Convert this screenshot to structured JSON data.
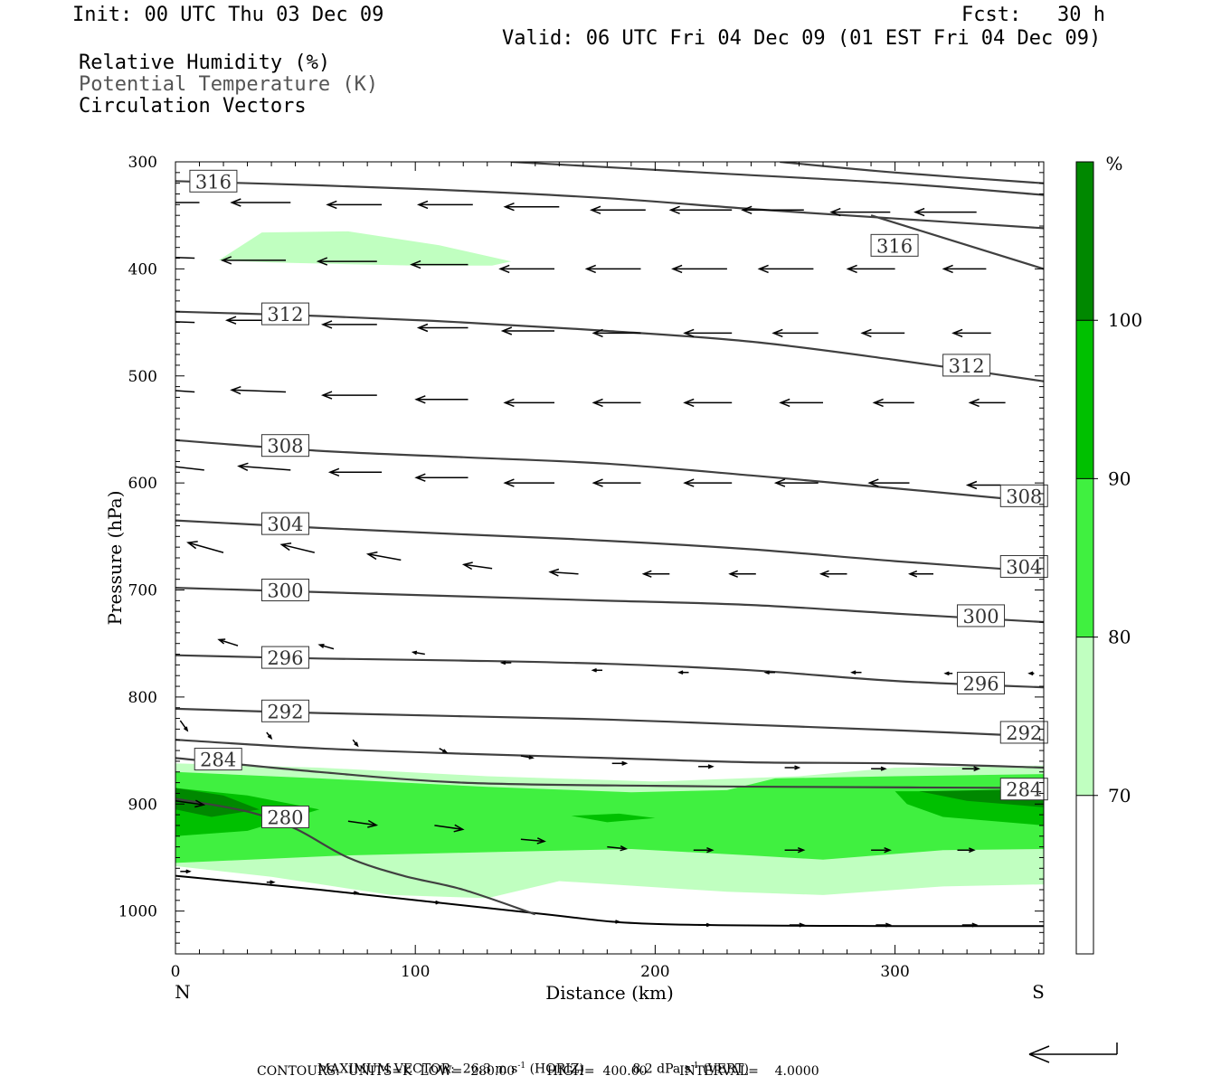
{
  "header": {
    "init": "Init: 00 UTC Thu 03 Dec 09",
    "fcst": "Fcst:   30 h",
    "valid": "Valid: 06 UTC Fri 04 Dec 09 (01 EST Fri 04 Dec 09)",
    "legend_rh": "Relative Humidity (%)",
    "legend_theta": "Potential Temperature (K)",
    "legend_vec": "Circulation Vectors"
  },
  "footer": {
    "max_vector_label": "MAXIMUM VECTOR:",
    "max_horiz_value": "26.3 m s",
    "max_vert_value": "8.2 dPa s",
    "exponent": "-1",
    "horiz_tag": "(HORIZ)",
    "vert_tag": "(VERT)",
    "contours_line": "CONTOURS:  UNITS=K  LOW=  280.00        HIGH=  400.00        INTERVAL=    4.0000"
  },
  "colors": {
    "rh70": "#c0ffc0",
    "rh80": "#40f040",
    "rh90": "#00c000",
    "rh100": "#008800",
    "theta_line": "#404040",
    "vector": "#000000"
  },
  "chart_data": {
    "type": "cross-section",
    "xlabel": "Distance (km)",
    "ylabel": "Pressure (hPa)",
    "xlim": [
      0,
      362
    ],
    "ylim": [
      1040,
      300
    ],
    "x_ticks": [
      0,
      100,
      200,
      300
    ],
    "y_ticks": [
      300,
      400,
      500,
      600,
      700,
      800,
      900,
      1000
    ],
    "left_end_label": "N",
    "right_end_label": "S",
    "colorbar": {
      "unit": "%",
      "levels": [
        70,
        80,
        90,
        100
      ],
      "colors": [
        "#c0ffc0",
        "#40f040",
        "#00c000",
        "#008800"
      ]
    },
    "theta_contours": [
      {
        "value": 316,
        "label": "316",
        "points": [
          [
            0,
            318
          ],
          [
            60,
            322
          ],
          [
            120,
            327
          ],
          [
            180,
            334
          ],
          [
            240,
            344
          ],
          [
            300,
            353
          ],
          [
            362,
            362
          ]
        ]
      },
      {
        "value": 316,
        "label": "316",
        "points": [
          [
            140,
            300
          ],
          [
            220,
            310
          ],
          [
            300,
            320
          ],
          [
            362,
            331
          ]
        ]
      },
      {
        "value": 316,
        "label": "",
        "points": [
          [
            252,
            300
          ],
          [
            300,
            310
          ],
          [
            362,
            320
          ]
        ]
      },
      {
        "value": 316,
        "label": "",
        "points": [
          [
            290,
            350
          ],
          [
            362,
            400
          ]
        ]
      },
      {
        "value": 312,
        "label": "312",
        "points": [
          [
            0,
            440
          ],
          [
            60,
            444
          ],
          [
            120,
            450
          ],
          [
            180,
            458
          ],
          [
            240,
            468
          ],
          [
            300,
            485
          ],
          [
            362,
            505
          ]
        ]
      },
      {
        "value": 308,
        "label": "308",
        "points": [
          [
            0,
            560
          ],
          [
            60,
            570
          ],
          [
            120,
            576
          ],
          [
            180,
            582
          ],
          [
            240,
            593
          ],
          [
            300,
            605
          ],
          [
            362,
            618
          ]
        ]
      },
      {
        "value": 304,
        "label": "304",
        "points": [
          [
            0,
            635
          ],
          [
            60,
            642
          ],
          [
            120,
            648
          ],
          [
            180,
            654
          ],
          [
            240,
            662
          ],
          [
            300,
            673
          ],
          [
            362,
            683
          ]
        ]
      },
      {
        "value": 300,
        "label": "300",
        "points": [
          [
            0,
            698
          ],
          [
            60,
            702
          ],
          [
            120,
            706
          ],
          [
            180,
            710
          ],
          [
            240,
            714
          ],
          [
            300,
            722
          ],
          [
            362,
            730
          ]
        ]
      },
      {
        "value": 296,
        "label": "296",
        "points": [
          [
            0,
            761
          ],
          [
            60,
            764
          ],
          [
            120,
            766
          ],
          [
            180,
            769
          ],
          [
            240,
            775
          ],
          [
            300,
            785
          ],
          [
            362,
            791
          ]
        ]
      },
      {
        "value": 292,
        "label": "292",
        "points": [
          [
            0,
            811
          ],
          [
            60,
            815
          ],
          [
            120,
            818
          ],
          [
            180,
            821
          ],
          [
            240,
            826
          ],
          [
            300,
            831
          ],
          [
            362,
            837
          ]
        ]
      },
      {
        "value": 288,
        "label": "",
        "points": [
          [
            0,
            840
          ],
          [
            60,
            848
          ],
          [
            120,
            853
          ],
          [
            180,
            857
          ],
          [
            240,
            861
          ],
          [
            300,
            862
          ],
          [
            362,
            866
          ]
        ]
      },
      {
        "value": 284,
        "label": "284",
        "points": [
          [
            0,
            857
          ],
          [
            60,
            870
          ],
          [
            120,
            880
          ],
          [
            200,
            883
          ],
          [
            260,
            884
          ],
          [
            362,
            885
          ]
        ]
      },
      {
        "value": 280,
        "label": "280",
        "points": [
          [
            0,
            895
          ],
          [
            30,
            907
          ],
          [
            50,
            923
          ],
          [
            72,
            950
          ],
          [
            95,
            967
          ],
          [
            120,
            980
          ],
          [
            150,
            1003
          ]
        ]
      }
    ],
    "terrain": [
      [
        0,
        967
      ],
      [
        60,
        980
      ],
      [
        150,
        1002
      ],
      [
        200,
        1012
      ],
      [
        300,
        1014
      ],
      [
        362,
        1014
      ]
    ],
    "vectors": [
      {
        "x": 10,
        "p": 338,
        "u": -25,
        "w": 0
      },
      {
        "x": 48,
        "p": 338,
        "u": -25,
        "w": 0
      },
      {
        "x": 86,
        "p": 340,
        "u": -23,
        "w": 0
      },
      {
        "x": 124,
        "p": 340,
        "u": -23,
        "w": 0
      },
      {
        "x": 160,
        "p": 342,
        "u": -23,
        "w": 0
      },
      {
        "x": 196,
        "p": 345,
        "u": -23,
        "w": 0
      },
      {
        "x": 232,
        "p": 345,
        "u": -26,
        "w": 0
      },
      {
        "x": 262,
        "p": 345,
        "u": -26,
        "w": 0
      },
      {
        "x": 298,
        "p": 347,
        "u": -25,
        "w": 0
      },
      {
        "x": 334,
        "p": 347,
        "u": -26,
        "w": 0
      },
      {
        "x": 8,
        "p": 390,
        "u": -25,
        "w": 1
      },
      {
        "x": 46,
        "p": 392,
        "u": -27,
        "w": 0
      },
      {
        "x": 84,
        "p": 393,
        "u": -25,
        "w": 0
      },
      {
        "x": 122,
        "p": 396,
        "u": -24,
        "w": 0
      },
      {
        "x": 158,
        "p": 400,
        "u": -23,
        "w": 0
      },
      {
        "x": 194,
        "p": 400,
        "u": -23,
        "w": 0
      },
      {
        "x": 230,
        "p": 400,
        "u": -23,
        "w": 0
      },
      {
        "x": 266,
        "p": 400,
        "u": -23,
        "w": 0
      },
      {
        "x": 300,
        "p": 400,
        "u": -20,
        "w": 0
      },
      {
        "x": 338,
        "p": 400,
        "u": -18,
        "w": 0
      },
      {
        "x": 8,
        "p": 450,
        "u": -24,
        "w": 1
      },
      {
        "x": 46,
        "p": 448,
        "u": -25,
        "w": 0
      },
      {
        "x": 84,
        "p": 452,
        "u": -23,
        "w": 0
      },
      {
        "x": 122,
        "p": 455,
        "u": -21,
        "w": 0
      },
      {
        "x": 158,
        "p": 458,
        "u": -22,
        "w": 0
      },
      {
        "x": 194,
        "p": 460,
        "u": -20,
        "w": 0
      },
      {
        "x": 232,
        "p": 460,
        "u": -20,
        "w": 0
      },
      {
        "x": 268,
        "p": 460,
        "u": -19,
        "w": 0
      },
      {
        "x": 304,
        "p": 460,
        "u": -18,
        "w": 0
      },
      {
        "x": 340,
        "p": 460,
        "u": -16,
        "w": 0
      },
      {
        "x": 8,
        "p": 515,
        "u": -24,
        "w": 2
      },
      {
        "x": 46,
        "p": 515,
        "u": -23,
        "w": 1
      },
      {
        "x": 84,
        "p": 518,
        "u": -23,
        "w": 0
      },
      {
        "x": 122,
        "p": 522,
        "u": -22,
        "w": 0
      },
      {
        "x": 158,
        "p": 525,
        "u": -21,
        "w": 0
      },
      {
        "x": 194,
        "p": 525,
        "u": -20,
        "w": 0
      },
      {
        "x": 232,
        "p": 525,
        "u": -20,
        "w": 0
      },
      {
        "x": 270,
        "p": 525,
        "u": -18,
        "w": 0
      },
      {
        "x": 308,
        "p": 525,
        "u": -17,
        "w": 0
      },
      {
        "x": 346,
        "p": 525,
        "u": -15,
        "w": 0
      },
      {
        "x": 12,
        "p": 588,
        "u": -22,
        "w": 3
      },
      {
        "x": 48,
        "p": 588,
        "u": -22,
        "w": 2
      },
      {
        "x": 86,
        "p": 590,
        "u": -22,
        "w": 0
      },
      {
        "x": 122,
        "p": 595,
        "u": -22,
        "w": 0
      },
      {
        "x": 158,
        "p": 600,
        "u": -21,
        "w": 0
      },
      {
        "x": 194,
        "p": 600,
        "u": -20,
        "w": 0
      },
      {
        "x": 232,
        "p": 600,
        "u": -20,
        "w": 0
      },
      {
        "x": 268,
        "p": 600,
        "u": -18,
        "w": 0
      },
      {
        "x": 306,
        "p": 600,
        "u": -17,
        "w": 0
      },
      {
        "x": 344,
        "p": 602,
        "u": -14,
        "w": 0
      },
      {
        "x": 20,
        "p": 665,
        "u": -15,
        "w": 5
      },
      {
        "x": 58,
        "p": 665,
        "u": -14,
        "w": 4
      },
      {
        "x": 94,
        "p": 672,
        "u": -14,
        "w": 3
      },
      {
        "x": 132,
        "p": 680,
        "u": -12,
        "w": 2
      },
      {
        "x": 168,
        "p": 685,
        "u": -12,
        "w": 1
      },
      {
        "x": 206,
        "p": 685,
        "u": -11,
        "w": 0
      },
      {
        "x": 242,
        "p": 685,
        "u": -11,
        "w": 0
      },
      {
        "x": 280,
        "p": 685,
        "u": -11,
        "w": 0
      },
      {
        "x": 316,
        "p": 685,
        "u": -10,
        "w": 0
      },
      {
        "x": 354,
        "p": 685,
        "u": -8,
        "w": 0
      },
      {
        "x": 26,
        "p": 752,
        "u": -8,
        "w": 3
      },
      {
        "x": 66,
        "p": 755,
        "u": -6,
        "w": 2
      },
      {
        "x": 104,
        "p": 760,
        "u": -5,
        "w": 1
      },
      {
        "x": 140,
        "p": 768,
        "u": -4,
        "w": 0
      },
      {
        "x": 178,
        "p": 775,
        "u": -4,
        "w": 0
      },
      {
        "x": 214,
        "p": 777,
        "u": -4,
        "w": 0
      },
      {
        "x": 250,
        "p": 777,
        "u": -4,
        "w": 0
      },
      {
        "x": 286,
        "p": 777,
        "u": -4,
        "w": 0
      },
      {
        "x": 324,
        "p": 778,
        "u": -3,
        "w": 0
      },
      {
        "x": 358,
        "p": 778,
        "u": -2,
        "w": 0
      },
      {
        "x": 2,
        "p": 822,
        "u": 3,
        "w": -5
      },
      {
        "x": 38,
        "p": 833,
        "u": 2,
        "w": -3
      },
      {
        "x": 74,
        "p": 840,
        "u": 2,
        "w": -3
      },
      {
        "x": 110,
        "p": 848,
        "u": 3,
        "w": -2
      },
      {
        "x": 144,
        "p": 855,
        "u": 5,
        "w": -1
      },
      {
        "x": 182,
        "p": 862,
        "u": 6,
        "w": 0
      },
      {
        "x": 218,
        "p": 865,
        "u": 6,
        "w": 0
      },
      {
        "x": 254,
        "p": 866,
        "u": 6,
        "w": 0
      },
      {
        "x": 290,
        "p": 867,
        "u": 6,
        "w": 0
      },
      {
        "x": 328,
        "p": 867,
        "u": 7,
        "w": 0
      },
      {
        "x": 0,
        "p": 897,
        "u": 12,
        "w": -2
      },
      {
        "x": 36,
        "p": 912,
        "u": 14,
        "w": -2
      },
      {
        "x": 72,
        "p": 916,
        "u": 12,
        "w": -2
      },
      {
        "x": 108,
        "p": 920,
        "u": 12,
        "w": -2
      },
      {
        "x": 144,
        "p": 933,
        "u": 10,
        "w": -1
      },
      {
        "x": 180,
        "p": 940,
        "u": 8,
        "w": -1
      },
      {
        "x": 216,
        "p": 943,
        "u": 8,
        "w": 0
      },
      {
        "x": 254,
        "p": 943,
        "u": 8,
        "w": 0
      },
      {
        "x": 290,
        "p": 943,
        "u": 8,
        "w": 0
      },
      {
        "x": 326,
        "p": 943,
        "u": 7,
        "w": 0
      },
      {
        "x": 2,
        "p": 963,
        "u": 4,
        "w": 0
      },
      {
        "x": 38,
        "p": 973,
        "u": 3,
        "w": 0
      },
      {
        "x": 74,
        "p": 983,
        "u": 2,
        "w": 0
      },
      {
        "x": 108,
        "p": 992,
        "u": 2,
        "w": 0
      },
      {
        "x": 182,
        "p": 1010,
        "u": 3,
        "w": 0
      },
      {
        "x": 218,
        "p": 1013,
        "u": 5,
        "w": 0
      },
      {
        "x": 256,
        "p": 1013,
        "u": 6,
        "w": 0
      },
      {
        "x": 292,
        "p": 1013,
        "u": 6,
        "w": 0
      },
      {
        "x": 328,
        "p": 1013,
        "u": 6,
        "w": 0
      }
    ]
  }
}
